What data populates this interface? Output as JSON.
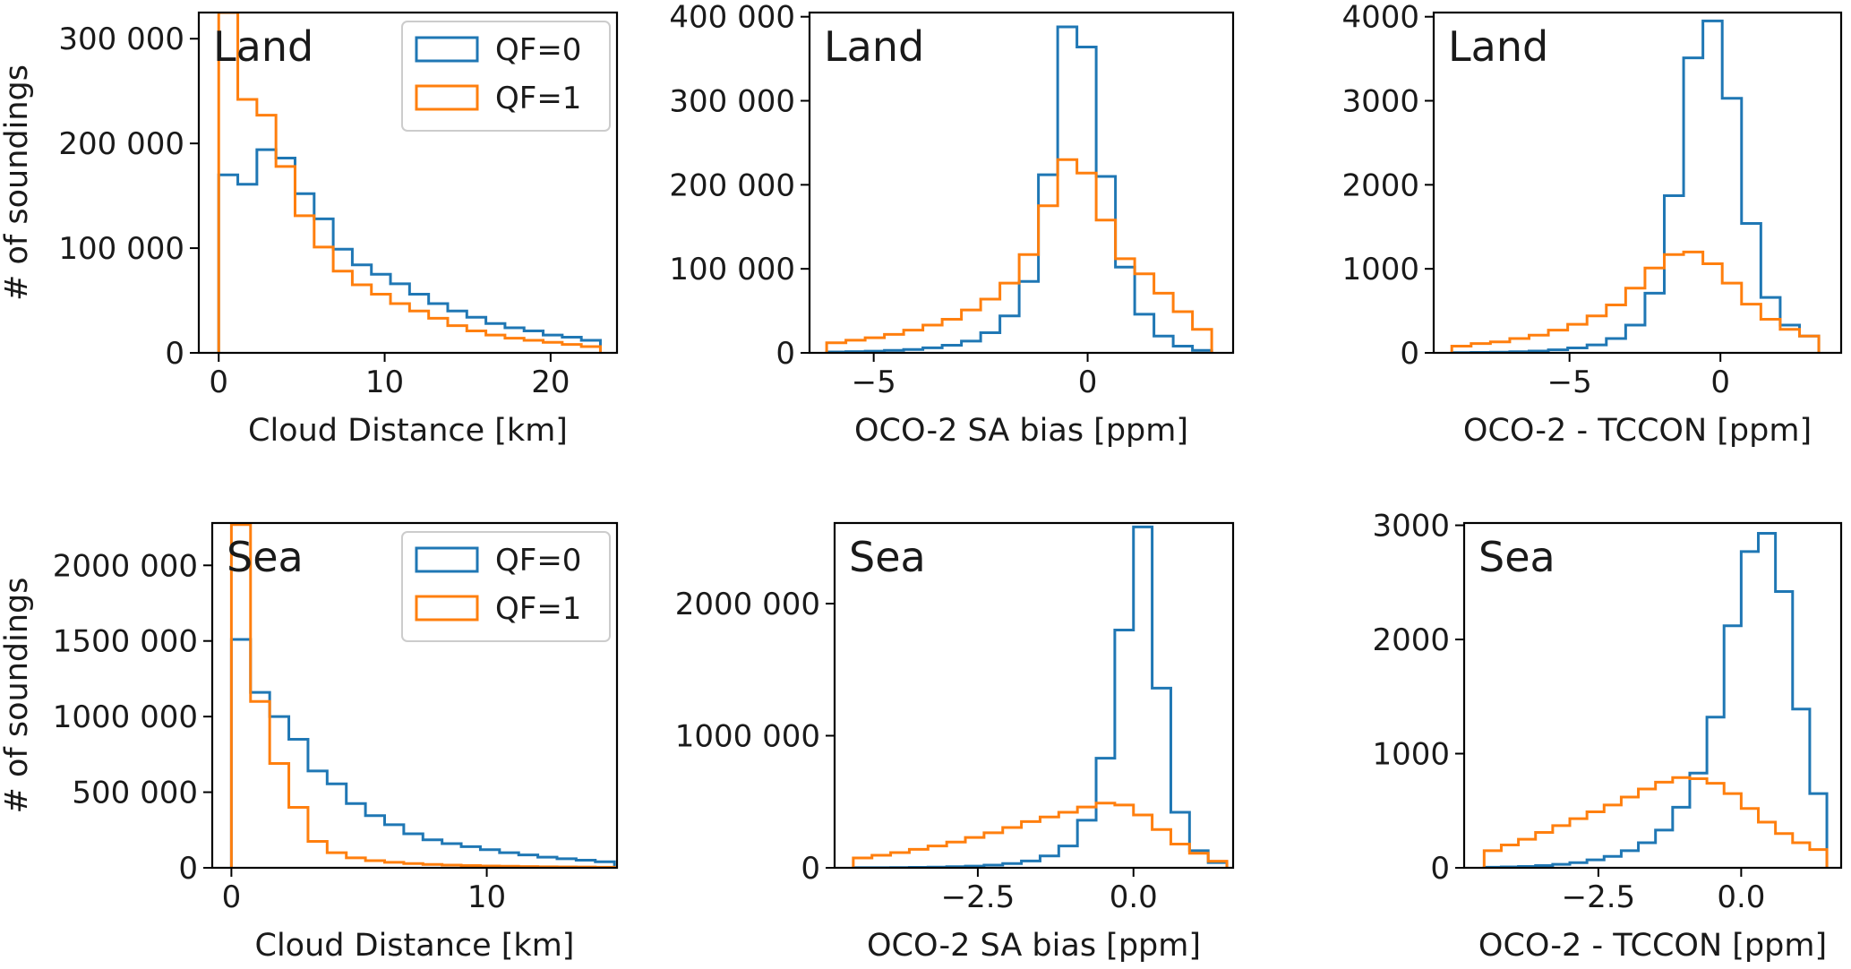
{
  "colors": {
    "qf0": "#1f77b4",
    "qf1": "#ff7f0e",
    "axis": "#000000",
    "background": "#ffffff"
  },
  "legend": {
    "qf0": "QF=0",
    "qf1": "QF=1"
  },
  "chart_data": [
    {
      "id": "land-cloud-distance",
      "type": "histogram-step",
      "panel_label": "Land",
      "xlabel": "Cloud Distance [km]",
      "ylabel": "# of soundings",
      "xlim": [
        -1.2,
        24.0
      ],
      "ylim": [
        0,
        325000
      ],
      "xticks": [
        0,
        10,
        20
      ],
      "xtick_labels": [
        "0",
        "10",
        "20"
      ],
      "yticks": [
        0,
        100000,
        200000,
        300000
      ],
      "ytick_labels": [
        "0",
        "100 000",
        "200 000",
        "300 000"
      ],
      "legend": true,
      "bin_edges": [
        0.0,
        1.15,
        2.3,
        3.45,
        4.6,
        5.75,
        6.9,
        8.05,
        9.2,
        10.35,
        11.5,
        12.65,
        13.8,
        14.95,
        16.1,
        17.25,
        18.4,
        19.55,
        20.7,
        21.85,
        23.0
      ],
      "series": [
        {
          "name": "QF=0",
          "values": [
            170000,
            161000,
            194000,
            186000,
            152000,
            128000,
            99000,
            84000,
            75000,
            66000,
            56000,
            47000,
            40000,
            34000,
            28000,
            24000,
            21000,
            17000,
            15000,
            12000
          ]
        },
        {
          "name": "QF=1",
          "values": [
            325000,
            242000,
            227000,
            178000,
            131000,
            101000,
            78000,
            65000,
            56000,
            47000,
            40000,
            33000,
            26000,
            21000,
            17000,
            14000,
            12000,
            10000,
            8000,
            6000
          ]
        }
      ]
    },
    {
      "id": "land-sa-bias",
      "type": "histogram-step",
      "panel_label": "Land",
      "xlabel": "OCO-2 SA bias [ppm]",
      "ylabel": "",
      "xlim": [
        -6.5,
        3.4
      ],
      "ylim": [
        0,
        405000
      ],
      "xticks": [
        -5,
        0
      ],
      "xtick_labels": [
        "−5",
        "0"
      ],
      "yticks": [
        0,
        100000,
        200000,
        300000,
        400000
      ],
      "ytick_labels": [
        "0",
        "100 000",
        "200 000",
        "300 000",
        "400 000"
      ],
      "legend": false,
      "bin_edges": [
        -6.1,
        -5.65,
        -5.2,
        -4.75,
        -4.3,
        -3.85,
        -3.4,
        -2.95,
        -2.5,
        -2.05,
        -1.6,
        -1.15,
        -0.7,
        -0.25,
        0.2,
        0.65,
        1.1,
        1.55,
        2.0,
        2.45,
        2.9
      ],
      "series": [
        {
          "name": "QF=0",
          "values": [
            1000,
            1500,
            2000,
            3000,
            4000,
            6000,
            9000,
            14000,
            24000,
            44000,
            85000,
            212000,
            388000,
            364000,
            210000,
            102000,
            46000,
            20000,
            8000,
            3000
          ]
        },
        {
          "name": "QF=1",
          "values": [
            12000,
            15000,
            18000,
            22000,
            27000,
            33000,
            40000,
            51000,
            64000,
            83000,
            117000,
            175000,
            230000,
            214000,
            158000,
            112000,
            94000,
            71000,
            49000,
            28000
          ]
        }
      ]
    },
    {
      "id": "land-tccon",
      "type": "histogram-step",
      "panel_label": "Land",
      "xlabel": "OCO-2 - TCCON [ppm]",
      "ylabel": "",
      "xlim": [
        -9.5,
        4.0
      ],
      "ylim": [
        0,
        4050
      ],
      "xticks": [
        -5,
        0
      ],
      "xtick_labels": [
        "−5",
        "0"
      ],
      "yticks": [
        0,
        1000,
        2000,
        3000,
        4000
      ],
      "ytick_labels": [
        "0",
        "1000",
        "2000",
        "3000",
        "4000"
      ],
      "legend": false,
      "bin_edges": [
        -8.9,
        -8.26,
        -7.62,
        -6.98,
        -6.34,
        -5.7,
        -5.06,
        -4.42,
        -3.78,
        -3.14,
        -2.5,
        -1.86,
        -1.22,
        -0.58,
        0.06,
        0.7,
        1.34,
        1.98,
        2.62,
        3.26
      ],
      "series": [
        {
          "name": "QF=0",
          "values": [
            2,
            5,
            8,
            14,
            22,
            36,
            58,
            94,
            170,
            330,
            710,
            1870,
            3510,
            3950,
            3030,
            1540,
            660,
            330,
            200
          ]
        },
        {
          "name": "QF=1",
          "values": [
            80,
            110,
            130,
            170,
            210,
            270,
            340,
            440,
            570,
            770,
            1010,
            1170,
            1200,
            1060,
            830,
            580,
            400,
            280,
            200
          ]
        }
      ]
    },
    {
      "id": "sea-cloud-distance",
      "type": "histogram-step",
      "panel_label": "Sea",
      "xlabel": "Cloud Distance [km]",
      "ylabel": "# of soundings",
      "xlim": [
        -0.75,
        15.1
      ],
      "ylim": [
        0,
        2280000
      ],
      "xticks": [
        0,
        10
      ],
      "xtick_labels": [
        "0",
        "10"
      ],
      "yticks": [
        0,
        500000,
        1000000,
        1500000,
        2000000
      ],
      "ytick_labels": [
        "0",
        "500 000",
        "1000 000",
        "1500 000",
        "2000 000"
      ],
      "legend": true,
      "bin_edges": [
        0.0,
        0.75,
        1.5,
        2.25,
        3.0,
        3.75,
        4.5,
        5.25,
        6.0,
        6.75,
        7.5,
        8.25,
        9.0,
        9.75,
        10.5,
        11.25,
        12.0,
        12.75,
        13.5,
        14.25,
        15.0
      ],
      "series": [
        {
          "name": "QF=0",
          "values": [
            1510000,
            1160000,
            1000000,
            850000,
            640000,
            555000,
            425000,
            345000,
            285000,
            225000,
            185000,
            160000,
            140000,
            120000,
            100000,
            85000,
            70000,
            60000,
            50000,
            40000
          ]
        },
        {
          "name": "QF=1",
          "values": [
            2270000,
            1100000,
            690000,
            400000,
            175000,
            100000,
            66000,
            47000,
            36000,
            28000,
            22000,
            18000,
            15000,
            12000,
            10000,
            8000,
            7000,
            6000,
            5000,
            4000
          ]
        }
      ]
    },
    {
      "id": "sea-sa-bias",
      "type": "histogram-step",
      "panel_label": "Sea",
      "xlabel": "OCO-2 SA bias [ppm]",
      "ylabel": "",
      "xlim": [
        -4.8,
        1.6
      ],
      "ylim": [
        0,
        2610000
      ],
      "xticks": [
        -2.5,
        0.0
      ],
      "xtick_labels": [
        "−2.5",
        "0.0"
      ],
      "yticks": [
        0,
        1000000,
        2000000
      ],
      "ytick_labels": [
        "0",
        "1000 000",
        "2000 000"
      ],
      "legend": false,
      "bin_edges": [
        -4.5,
        -4.2,
        -3.9,
        -3.6,
        -3.3,
        -3.0,
        -2.7,
        -2.4,
        -2.1,
        -1.8,
        -1.5,
        -1.2,
        -0.9,
        -0.6,
        -0.3,
        0.0,
        0.3,
        0.6,
        0.9,
        1.2,
        1.5
      ],
      "series": [
        {
          "name": "QF=0",
          "values": [
            500,
            1000,
            2000,
            3500,
            5500,
            8500,
            13000,
            20000,
            32000,
            52000,
            90000,
            165000,
            360000,
            830000,
            1800000,
            2580000,
            1360000,
            420000,
            130000,
            40000
          ]
        },
        {
          "name": "QF=1",
          "values": [
            75000,
            95000,
            115000,
            140000,
            165000,
            195000,
            230000,
            265000,
            305000,
            350000,
            385000,
            420000,
            460000,
            490000,
            475000,
            400000,
            290000,
            180000,
            110000,
            50000
          ]
        }
      ]
    },
    {
      "id": "sea-tccon",
      "type": "histogram-step",
      "panel_label": "Sea",
      "xlabel": "OCO-2 - TCCON [ppm]",
      "ylabel": "",
      "xlim": [
        -4.85,
        1.75
      ],
      "ylim": [
        0,
        3020
      ],
      "xticks": [
        -2.5,
        0.0
      ],
      "xtick_labels": [
        "−2.5",
        "0.0"
      ],
      "yticks": [
        0,
        1000,
        2000,
        3000
      ],
      "ytick_labels": [
        "0",
        "1000",
        "2000",
        "3000"
      ],
      "legend": false,
      "bin_edges": [
        -4.5,
        -4.2,
        -3.9,
        -3.6,
        -3.3,
        -3.0,
        -2.7,
        -2.4,
        -2.1,
        -1.8,
        -1.5,
        -1.2,
        -0.9,
        -0.6,
        -0.3,
        0.0,
        0.3,
        0.6,
        0.9,
        1.2,
        1.5
      ],
      "series": [
        {
          "name": "QF=0",
          "values": [
            5,
            8,
            12,
            20,
            30,
            45,
            70,
            100,
            150,
            220,
            330,
            530,
            830,
            1320,
            2120,
            2770,
            2930,
            2420,
            1390,
            650
          ]
        },
        {
          "name": "QF=1",
          "values": [
            150,
            200,
            250,
            310,
            370,
            430,
            490,
            550,
            620,
            690,
            750,
            790,
            780,
            740,
            650,
            520,
            400,
            300,
            220,
            160
          ]
        }
      ]
    }
  ]
}
